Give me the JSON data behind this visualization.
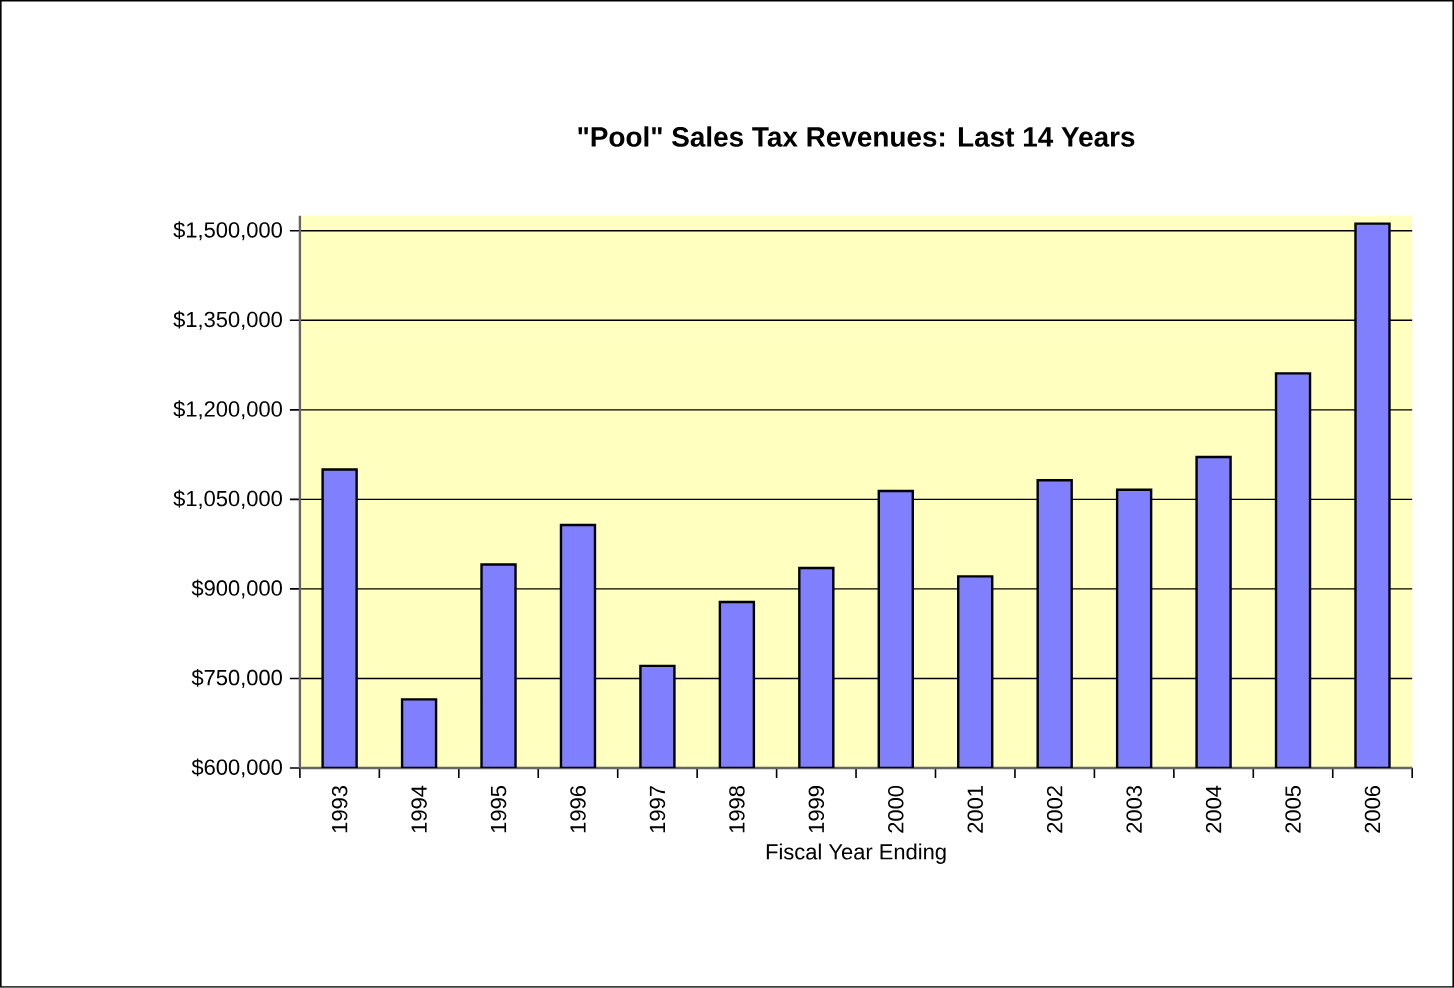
{
  "chart_data": {
    "type": "bar",
    "title": "\"Pool\" Sales Tax Revenues: Last 14 Years",
    "xlabel": "Fiscal Year Ending",
    "categories": [
      "1993",
      "1994",
      "1995",
      "1996",
      "1997",
      "1998",
      "1999",
      "2000",
      "2001",
      "2002",
      "2003",
      "2004",
      "2005",
      "2006"
    ],
    "values": [
      1100000,
      715000,
      941000,
      1007000,
      771000,
      878000,
      935000,
      1064000,
      921000,
      1082000,
      1066000,
      1121000,
      1261000,
      1512000
    ],
    "color": "#8080ff",
    "ylim": [
      600000,
      1525000
    ],
    "yticks": [
      {
        "value": 600000,
        "label": "$600,000"
      },
      {
        "value": 750000,
        "label": "$750,000"
      },
      {
        "value": 900000,
        "label": "$900,000"
      },
      {
        "value": 1050000,
        "label": "$1,050,000"
      },
      {
        "value": 1200000,
        "label": "$1,200,000"
      },
      {
        "value": 1350000,
        "label": "$1,350,000"
      },
      {
        "value": 1500000,
        "label": "$1,500,000"
      }
    ],
    "grid": "y"
  }
}
